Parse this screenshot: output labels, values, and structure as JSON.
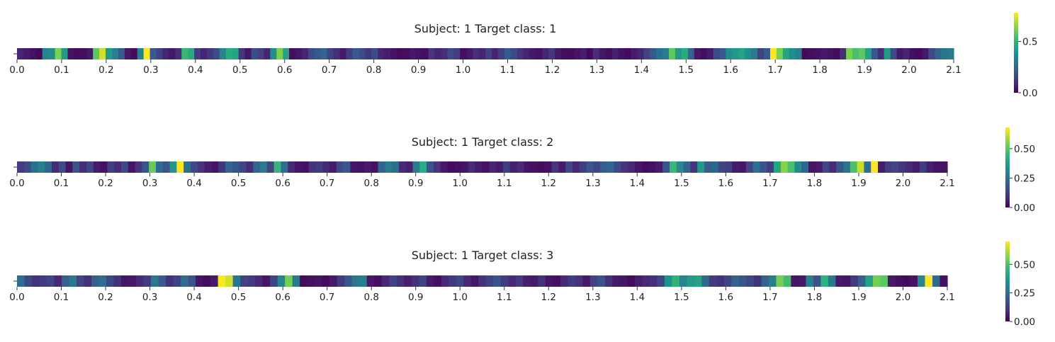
{
  "chart_data": [
    {
      "type": "heatmap",
      "title": "Subject: 1 Target class: 1",
      "colormap": "viridis",
      "xlim": [
        0.0,
        2.1
      ],
      "x_ticks": [
        "0.0",
        "0.1",
        "0.2",
        "0.3",
        "0.4",
        "0.5",
        "0.6",
        "0.7",
        "0.8",
        "0.9",
        "1.0",
        "1.1",
        "1.2",
        "1.3",
        "1.4",
        "1.5",
        "1.6",
        "1.7",
        "1.8",
        "1.9",
        "2.0",
        "2.1"
      ],
      "colorbar": {
        "range": [
          0.0,
          0.78
        ],
        "ticks": [
          0.0,
          0.5
        ],
        "tick_labels": [
          "0.0",
          "0.5"
        ]
      },
      "values": [
        0.08,
        0.06,
        0.04,
        0.02,
        0.35,
        0.38,
        0.62,
        0.42,
        0.04,
        0.02,
        0.03,
        0.05,
        0.58,
        0.72,
        0.42,
        0.35,
        0.22,
        0.05,
        0.02,
        0.34,
        0.78,
        0.22,
        0.15,
        0.08,
        0.05,
        0.1,
        0.52,
        0.48,
        0.14,
        0.08,
        0.12,
        0.18,
        0.35,
        0.48,
        0.45,
        0.12,
        0.05,
        0.18,
        0.15,
        0.08,
        0.38,
        0.62,
        0.45,
        0.03,
        0.05,
        0.08,
        0.18,
        0.22,
        0.25,
        0.15,
        0.1,
        0.05,
        0.14,
        0.22,
        0.18,
        0.12,
        0.18,
        0.08,
        0.06,
        0.04,
        0.02,
        0.03,
        0.05,
        0.04,
        0.03,
        0.12,
        0.08,
        0.1,
        0.18,
        0.14,
        0.03,
        0.05,
        0.1,
        0.08,
        0.15,
        0.08,
        0.14,
        0.22,
        0.18,
        0.12,
        0.08,
        0.05,
        0.04,
        0.08,
        0.12,
        0.05,
        0.03,
        0.02,
        0.04,
        0.06,
        0.02,
        0.1,
        0.05,
        0.03,
        0.07,
        0.04,
        0.02,
        0.06,
        0.08,
        0.15,
        0.22,
        0.28,
        0.32,
        0.58,
        0.42,
        0.48,
        0.25,
        0.05,
        0.03,
        0.06,
        0.18,
        0.22,
        0.38,
        0.42,
        0.45,
        0.38,
        0.32,
        0.15,
        0.22,
        0.78,
        0.62,
        0.45,
        0.38,
        0.34,
        0.02,
        0.03,
        0.04,
        0.05,
        0.04,
        0.02,
        0.1,
        0.62,
        0.55,
        0.58,
        0.45,
        0.22,
        0.1,
        0.42,
        0.18,
        0.05,
        0.08,
        0.03,
        0.02,
        0.05,
        0.18,
        0.25,
        0.3,
        0.32
      ]
    },
    {
      "type": "heatmap",
      "title": "Subject: 1 Target class: 2",
      "colormap": "viridis",
      "xlim": [
        0.0,
        2.1
      ],
      "x_ticks": [
        "0.0",
        "0.1",
        "0.2",
        "0.3",
        "0.4",
        "0.5",
        "0.6",
        "0.7",
        "0.8",
        "0.9",
        "1.0",
        "1.1",
        "1.2",
        "1.3",
        "1.4",
        "1.5",
        "1.6",
        "1.7",
        "1.8",
        "1.9",
        "2.0",
        "2.1"
      ],
      "colorbar": {
        "range": [
          0.0,
          0.68
        ],
        "ticks": [
          0.0,
          0.25,
          0.5
        ],
        "tick_labels": [
          "0.00",
          "0.25",
          "0.50"
        ]
      },
      "values": [
        0.12,
        0.15,
        0.25,
        0.3,
        0.22,
        0.08,
        0.15,
        0.04,
        0.18,
        0.08,
        0.14,
        0.05,
        0.03,
        0.12,
        0.08,
        0.15,
        0.04,
        0.1,
        0.18,
        0.52,
        0.24,
        0.18,
        0.35,
        0.68,
        0.25,
        0.15,
        0.1,
        0.06,
        0.04,
        0.1,
        0.22,
        0.18,
        0.14,
        0.08,
        0.22,
        0.28,
        0.14,
        0.45,
        0.25,
        0.08,
        0.04,
        0.03,
        0.1,
        0.12,
        0.08,
        0.05,
        0.15,
        0.18,
        0.04,
        0.03,
        0.05,
        0.03,
        0.22,
        0.28,
        0.24,
        0.08,
        0.06,
        0.28,
        0.42,
        0.18,
        0.1,
        0.05,
        0.02,
        0.03,
        0.04,
        0.08,
        0.05,
        0.03,
        0.07,
        0.05,
        0.12,
        0.06,
        0.08,
        0.04,
        0.03,
        0.02,
        0.03,
        0.1,
        0.05,
        0.15,
        0.08,
        0.12,
        0.18,
        0.14,
        0.2,
        0.22,
        0.15,
        0.1,
        0.08,
        0.04,
        0.02,
        0.03,
        0.05,
        0.18,
        0.45,
        0.32,
        0.22,
        0.1,
        0.36,
        0.2,
        0.22,
        0.14,
        0.12,
        0.05,
        0.04,
        0.14,
        0.25,
        0.18,
        0.12,
        0.4,
        0.55,
        0.48,
        0.32,
        0.22,
        0.04,
        0.05,
        0.14,
        0.08,
        0.18,
        0.25,
        0.48,
        0.62,
        0.24,
        0.68,
        0.05,
        0.12,
        0.14,
        0.1,
        0.08,
        0.05,
        0.12,
        0.06,
        0.04,
        0.03
      ]
    },
    {
      "type": "heatmap",
      "title": "Subject: 1 Target class: 3",
      "colormap": "viridis",
      "xlim": [
        0.0,
        2.1
      ],
      "x_ticks": [
        "0.0",
        "0.1",
        "0.2",
        "0.3",
        "0.4",
        "0.5",
        "0.6",
        "0.7",
        "0.8",
        "0.9",
        "1.0",
        "1.1",
        "1.2",
        "1.3",
        "1.4",
        "1.5",
        "1.6",
        "1.7",
        "1.8",
        "1.9",
        "2.0",
        "2.1"
      ],
      "colorbar": {
        "range": [
          0.0,
          0.7
        ],
        "ticks": [
          0.0,
          0.25,
          0.5
        ],
        "tick_labels": [
          "0.00",
          "0.25",
          "0.50"
        ]
      },
      "values": [
        0.25,
        0.15,
        0.1,
        0.12,
        0.14,
        0.08,
        0.22,
        0.28,
        0.15,
        0.1,
        0.22,
        0.25,
        0.15,
        0.1,
        0.04,
        0.05,
        0.08,
        0.12,
        0.28,
        0.2,
        0.1,
        0.14,
        0.25,
        0.18,
        0.04,
        0.02,
        0.05,
        0.7,
        0.65,
        0.28,
        0.14,
        0.12,
        0.08,
        0.04,
        0.15,
        0.32,
        0.55,
        0.28,
        0.02,
        0.03,
        0.04,
        0.02,
        0.05,
        0.12,
        0.18,
        0.28,
        0.3,
        0.05,
        0.03,
        0.08,
        0.14,
        0.1,
        0.06,
        0.1,
        0.14,
        0.05,
        0.03,
        0.08,
        0.12,
        0.15,
        0.08,
        0.04,
        0.1,
        0.14,
        0.18,
        0.12,
        0.08,
        0.12,
        0.06,
        0.05,
        0.1,
        0.04,
        0.03,
        0.08,
        0.12,
        0.1,
        0.05,
        0.14,
        0.18,
        0.1,
        0.05,
        0.04,
        0.02,
        0.06,
        0.08,
        0.1,
        0.15,
        0.35,
        0.45,
        0.32,
        0.38,
        0.4,
        0.24,
        0.12,
        0.1,
        0.14,
        0.22,
        0.18,
        0.15,
        0.1,
        0.22,
        0.3,
        0.55,
        0.48,
        0.04,
        0.05,
        0.3,
        0.18,
        0.45,
        0.28,
        0.05,
        0.04,
        0.12,
        0.22,
        0.4,
        0.55,
        0.52,
        0.05,
        0.03,
        0.02,
        0.04,
        0.32,
        0.7,
        0.25,
        0.03
      ]
    }
  ]
}
